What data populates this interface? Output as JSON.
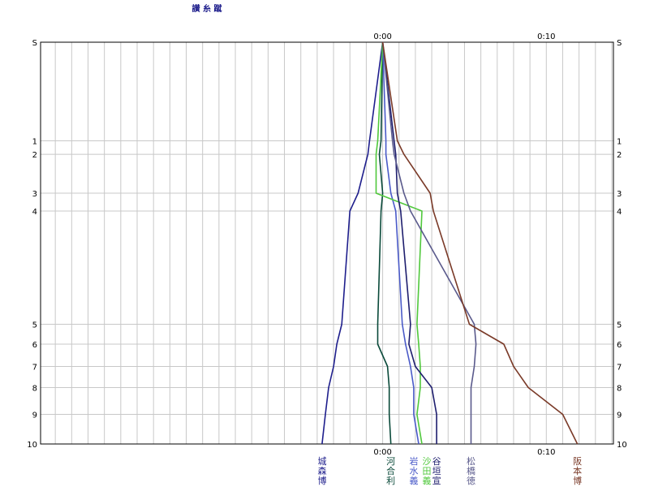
{
  "chart_data": {
    "type": "line",
    "x_axis": {
      "unit": "minutes",
      "range": [
        -20.9,
        14.1
      ],
      "ticks": [
        {
          "value": 0,
          "label": "0:00"
        },
        {
          "value": 10,
          "label": "0:10"
        }
      ],
      "grid_step": 1
    },
    "y_axis": {
      "range": [
        0,
        10
      ],
      "ticks": [
        {
          "value": 0,
          "label": "S"
        },
        {
          "value": 1,
          "label": "1"
        },
        {
          "value": 2,
          "label": "2"
        },
        {
          "value": 3,
          "label": "3"
        },
        {
          "value": 4,
          "label": "4"
        },
        {
          "value": 5,
          "label": "5"
        },
        {
          "value": 6,
          "label": "6"
        },
        {
          "value": 7,
          "label": "7"
        },
        {
          "value": 8,
          "label": "8"
        },
        {
          "value": 9,
          "label": "9"
        },
        {
          "value": 10,
          "label": "10"
        }
      ],
      "tick_positions": [
        0,
        2.4545,
        2.7898,
        3.7576,
        4.202,
        7.0202,
        7.5152,
        8.0707,
        8.596,
        9.2626,
        10
      ]
    },
    "top_label": "讃 糸 蹴",
    "grid": true,
    "series": [
      {
        "name": "城森博",
        "color": "#1e1e8c",
        "x": [
          0,
          -0.8,
          -0.9,
          -1.5,
          -2.0,
          -2.5,
          -2.8,
          -3.0,
          -3.3,
          -3.5,
          -3.7
        ],
        "y": [
          0,
          2.4545,
          2.7898,
          3.7576,
          4.202,
          7.0202,
          7.5152,
          8.0707,
          8.596,
          9.2626,
          10
        ]
      },
      {
        "name": "河合利",
        "color": "#0a4a3a",
        "x": [
          0,
          -0.1,
          -0.2,
          0,
          -0.1,
          -0.3,
          -0.3,
          0.3,
          0.4,
          0.4,
          0.5
        ],
        "y": [
          0,
          2.4545,
          2.7898,
          3.7576,
          4.202,
          7.0202,
          7.5152,
          8.0707,
          8.596,
          9.2626,
          10
        ]
      },
      {
        "name": "岩水義",
        "color": "#4a5ac8",
        "x": [
          0,
          0.2,
          0.2,
          0.5,
          0.8,
          1.2,
          1.4,
          1.7,
          1.9,
          1.9,
          2.2
        ],
        "y": [
          0,
          2.4545,
          2.7898,
          3.7576,
          4.202,
          7.0202,
          7.5152,
          8.0707,
          8.596,
          9.2626,
          10
        ]
      },
      {
        "name": "沙田義",
        "color": "#50c83c",
        "x": [
          0,
          -0.3,
          -0.4,
          -0.4,
          2.4,
          2.1,
          2.2,
          2.3,
          2.3,
          2.1,
          2.4
        ],
        "y": [
          0,
          2.4545,
          2.7898,
          3.7576,
          4.202,
          7.0202,
          7.5152,
          8.0707,
          8.596,
          9.2626,
          10
        ]
      },
      {
        "name": "谷垣宣",
        "color": "#1e1e6e",
        "x": [
          0,
          0.7,
          0.8,
          0.9,
          1.1,
          1.7,
          1.6,
          2.0,
          3.0,
          3.3,
          3.3
        ],
        "y": [
          0,
          2.4545,
          2.7898,
          3.7576,
          4.202,
          7.0202,
          7.5152,
          8.0707,
          8.596,
          9.2626,
          10
        ]
      },
      {
        "name": "松橋徳",
        "color": "#5a5a8c",
        "x": [
          0,
          0.6,
          0.7,
          1.3,
          1.7,
          5.6,
          5.7,
          5.6,
          5.4,
          5.4,
          5.4
        ],
        "y": [
          0,
          2.4545,
          2.7898,
          3.7576,
          4.202,
          7.0202,
          7.5152,
          8.0707,
          8.596,
          9.2626,
          10
        ]
      },
      {
        "name": "阪本博",
        "color": "#7a3a28",
        "x": [
          0,
          0.9,
          1.3,
          2.9,
          3.1,
          5.3,
          7.4,
          8.0,
          8.9,
          11.0,
          11.9
        ],
        "y": [
          0,
          2.4545,
          2.7898,
          3.7576,
          4.202,
          7.0202,
          7.5152,
          8.0707,
          8.596,
          9.2626,
          10
        ]
      }
    ]
  }
}
